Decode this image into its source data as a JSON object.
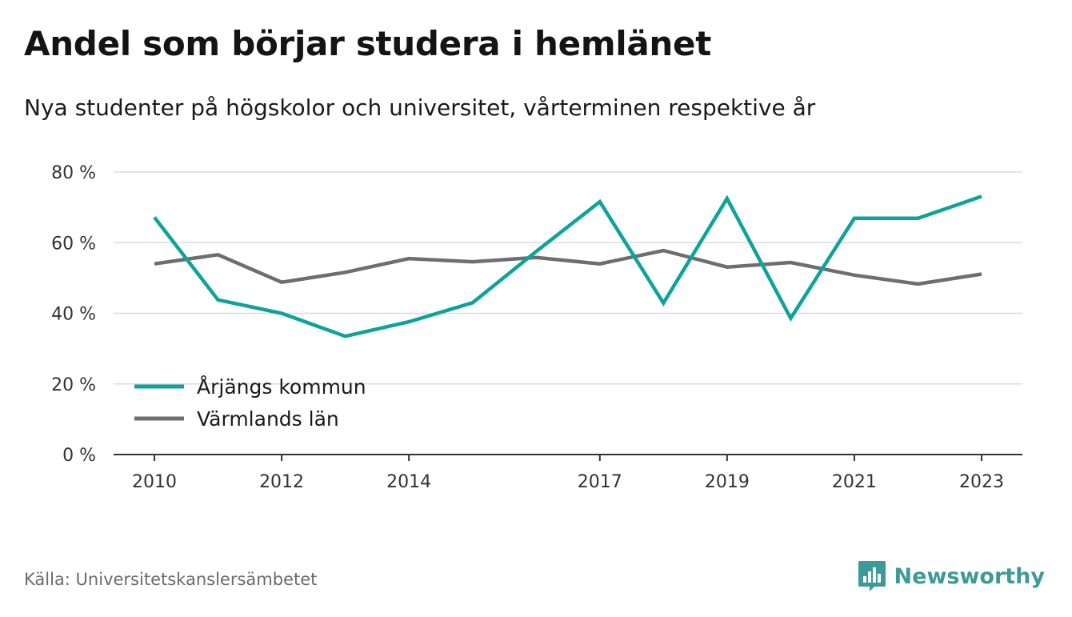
{
  "header": {
    "title": "Andel som börjar studera i hemlänet",
    "subtitle": "Nya studenter på högskolor och universitet, vårterminen respektive år"
  },
  "footer": {
    "source": "Källa: Universitetskanslersämbetet",
    "brand": "Newsworthy",
    "brand_icon": "bar-chart-speech-bubble-icon",
    "brand_color": "#3d9a96"
  },
  "chart_data": {
    "type": "line",
    "title": "Andel som börjar studera i hemlänet",
    "subtitle": "Nya studenter på högskolor och universitet, vårterminen respektive år",
    "x": [
      2010,
      2011,
      2012,
      2013,
      2014,
      2015,
      2016,
      2017,
      2018,
      2019,
      2020,
      2021,
      2022,
      2023
    ],
    "x_tick_labels": [
      "2010",
      "2012",
      "2014",
      "2017",
      "2019",
      "2021",
      "2023"
    ],
    "y_tick_labels": [
      "0 %",
      "20 %",
      "40 %",
      "60 %",
      "80 %"
    ],
    "ylim": [
      0,
      80
    ],
    "grid": true,
    "legend_position": "bottom-left",
    "series": [
      {
        "name": "Årjängs kommun",
        "color": "#0ea39a",
        "values": [
          67.2,
          43.8,
          40.0,
          33.5,
          37.6,
          43.0,
          57.5,
          71.6,
          42.9,
          72.5,
          38.6,
          66.9,
          66.9,
          73.1
        ]
      },
      {
        "name": "Värmlands län",
        "color": "#6e6d72",
        "values": [
          54.0,
          56.6,
          48.8,
          51.6,
          55.5,
          54.6,
          55.8,
          54.0,
          57.8,
          53.1,
          54.4,
          50.8,
          48.3,
          51.1
        ]
      }
    ]
  }
}
